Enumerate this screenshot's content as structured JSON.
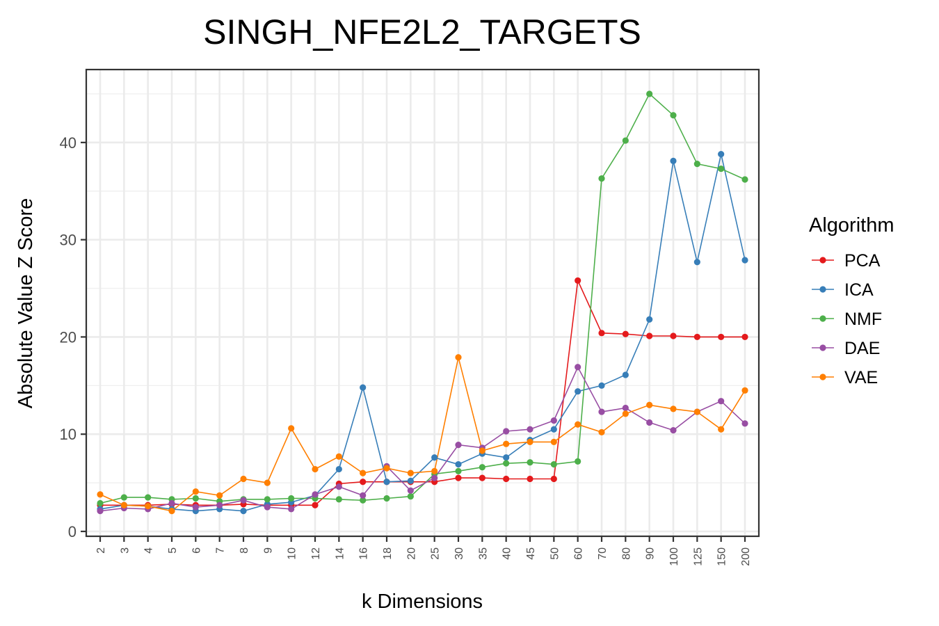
{
  "chart_data": {
    "type": "line",
    "title": "SINGH_NFE2L2_TARGETS",
    "xlabel": "k Dimensions",
    "ylabel": "Absolute Value Z Score",
    "categories": [
      "2",
      "3",
      "4",
      "5",
      "6",
      "7",
      "8",
      "9",
      "10",
      "12",
      "14",
      "16",
      "18",
      "20",
      "25",
      "30",
      "35",
      "40",
      "45",
      "50",
      "60",
      "70",
      "80",
      "90",
      "100",
      "125",
      "150",
      "200"
    ],
    "yticks": [
      0,
      10,
      20,
      30,
      40
    ],
    "ylim": [
      -0.5,
      47.5
    ],
    "grid": true,
    "legend": {
      "title": "Algorithm",
      "position": "right"
    },
    "series": [
      {
        "name": "PCA",
        "color": "#E41A1C",
        "values": [
          2.7,
          2.7,
          2.7,
          2.8,
          2.7,
          2.7,
          2.8,
          2.7,
          2.7,
          2.7,
          4.9,
          5.1,
          5.1,
          5.1,
          5.1,
          5.5,
          5.5,
          5.4,
          5.4,
          5.4,
          25.8,
          20.4,
          20.3,
          20.1,
          20.1,
          20.0,
          20.0,
          20.0
        ]
      },
      {
        "name": "ICA",
        "color": "#377EB8",
        "values": [
          2.3,
          2.7,
          2.6,
          2.3,
          2.1,
          2.3,
          2.1,
          2.8,
          3.0,
          3.7,
          6.4,
          14.8,
          5.1,
          5.2,
          7.6,
          6.9,
          8.0,
          7.6,
          9.4,
          10.5,
          14.4,
          15.0,
          16.1,
          21.8,
          38.1,
          27.7,
          38.8,
          27.9
        ]
      },
      {
        "name": "NMF",
        "color": "#4DAF4A",
        "values": [
          2.9,
          3.5,
          3.5,
          3.3,
          3.4,
          3.1,
          3.3,
          3.3,
          3.4,
          3.4,
          3.3,
          3.2,
          3.4,
          3.6,
          5.9,
          6.2,
          6.6,
          7.0,
          7.1,
          6.9,
          7.2,
          36.3,
          40.2,
          45.0,
          42.8,
          37.8,
          37.3,
          36.2
        ]
      },
      {
        "name": "DAE",
        "color": "#984EA3",
        "values": [
          2.1,
          2.4,
          2.3,
          2.9,
          2.5,
          2.7,
          3.2,
          2.5,
          2.3,
          3.8,
          4.6,
          3.7,
          6.7,
          4.2,
          5.5,
          8.9,
          8.6,
          10.3,
          10.5,
          11.4,
          16.9,
          12.3,
          12.7,
          11.2,
          10.4,
          12.3,
          13.4,
          11.1
        ]
      },
      {
        "name": "VAE",
        "color": "#FF7F00",
        "values": [
          3.8,
          2.7,
          2.6,
          2.1,
          4.1,
          3.7,
          5.4,
          5.0,
          10.6,
          6.4,
          7.7,
          6.0,
          6.5,
          6.0,
          6.2,
          17.9,
          8.3,
          9.0,
          9.2,
          9.2,
          11.0,
          10.2,
          12.1,
          13.0,
          12.6,
          12.3,
          10.5,
          14.5
        ]
      }
    ]
  }
}
